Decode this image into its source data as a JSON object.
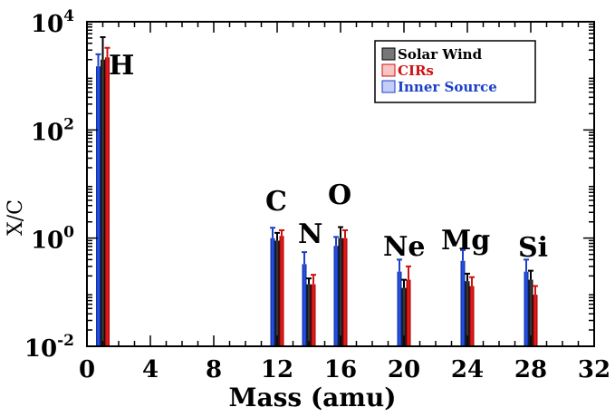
{
  "chart_data": {
    "type": "bar",
    "title": "",
    "xlabel": "Mass  (amu)",
    "ylabel": "X/C",
    "xlim": [
      0,
      32
    ],
    "xticks": [
      "0",
      "4",
      "8",
      "12",
      "16",
      "20",
      "24",
      "28",
      "32"
    ],
    "ylim": [
      0.01,
      10000
    ],
    "yscale": "log",
    "yticks": [
      {
        "base": "10",
        "exp": "-2"
      },
      {
        "base": "10",
        "exp": "0"
      },
      {
        "base": "10",
        "exp": "2"
      },
      {
        "base": "10",
        "exp": "4"
      }
    ],
    "legend_position": "top-right",
    "series": [
      {
        "name": "Inner Source",
        "color": "#1a3fc9",
        "points": [
          {
            "x": 1,
            "y": 1500,
            "err": 2500
          },
          {
            "x": 12,
            "y": 1.0,
            "err": 1.55
          },
          {
            "x": 14,
            "y": 0.33,
            "err": 0.55
          },
          {
            "x": 16,
            "y": 0.72,
            "err": 1.05
          },
          {
            "x": 20,
            "y": 0.24,
            "err": 0.4
          },
          {
            "x": 24,
            "y": 0.38,
            "err": 0.6
          },
          {
            "x": 28,
            "y": 0.24,
            "err": 0.4
          }
        ]
      },
      {
        "name": "Solar Wind",
        "color": "#000000",
        "points": [
          {
            "x": 1,
            "y": 2000,
            "err": 5200
          },
          {
            "x": 12,
            "y": 0.9,
            "err": 1.25
          },
          {
            "x": 14,
            "y": 0.14,
            "err": 0.18
          },
          {
            "x": 16,
            "y": 1.0,
            "err": 1.6
          },
          {
            "x": 20,
            "y": 0.12,
            "err": 0.17
          },
          {
            "x": 24,
            "y": 0.16,
            "err": 0.22
          },
          {
            "x": 28,
            "y": 0.17,
            "err": 0.25
          }
        ]
      },
      {
        "name": "CIRs",
        "color": "#d01010",
        "points": [
          {
            "x": 1,
            "y": 2200,
            "err": 3300
          },
          {
            "x": 12,
            "y": 1.1,
            "err": 1.4
          },
          {
            "x": 14,
            "y": 0.14,
            "err": 0.21
          },
          {
            "x": 16,
            "y": 1.0,
            "err": 1.4
          },
          {
            "x": 20,
            "y": 0.17,
            "err": 0.3
          },
          {
            "x": 24,
            "y": 0.13,
            "err": 0.19
          },
          {
            "x": 28,
            "y": 0.09,
            "err": 0.13
          }
        ]
      }
    ],
    "annotations": [
      {
        "text": "H",
        "x": 1
      },
      {
        "text": "C",
        "x": 12
      },
      {
        "text": "N",
        "x": 14
      },
      {
        "text": "O",
        "x": 16
      },
      {
        "text": "Ne",
        "x": 20
      },
      {
        "text": "Mg",
        "x": 24
      },
      {
        "text": "Si",
        "x": 28
      }
    ]
  }
}
